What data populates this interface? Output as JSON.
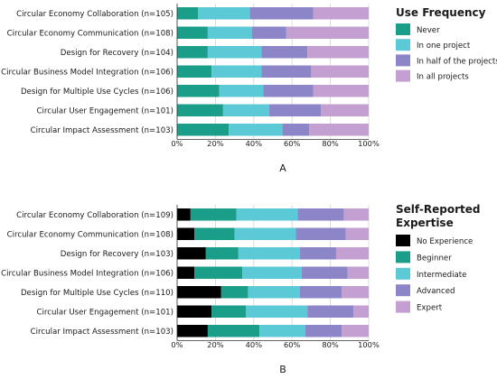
{
  "chart_data": [
    {
      "type": "bar",
      "orientation": "horizontal",
      "stacked": true,
      "panel_label": "A",
      "categories": [
        "Circular Economy Collaboration (n=105)",
        "Circular Economy Communication (n=108)",
        "Design for Recovery (n=104)",
        "Circular Business Model Integration (n=106)",
        "Design for Multiple Use Cycles (n=106)",
        "Circular User Engagement (n=101)",
        "Circular Impact Assessment (n=103)"
      ],
      "xlim": [
        0,
        100
      ],
      "x_ticks": [
        "0%",
        "20%",
        "40%",
        "60%",
        "80%",
        "100%"
      ],
      "legend_title": [
        "Use Frequency"
      ],
      "legend_position": "right",
      "series": [
        {
          "name": "Never",
          "color": "#1a9e8a",
          "values": [
            11,
            16,
            16,
            18,
            22,
            24,
            27
          ]
        },
        {
          "name": "In one project",
          "color": "#5ccad6",
          "values": [
            27,
            23,
            28,
            26,
            23,
            24,
            28
          ]
        },
        {
          "name": "In half of the projects",
          "color": "#8c85c8",
          "values": [
            33,
            18,
            24,
            26,
            26,
            27,
            14
          ]
        },
        {
          "name": "In all projects",
          "color": "#c49fd2",
          "values": [
            29,
            43,
            32,
            30,
            29,
            25,
            31
          ]
        }
      ]
    },
    {
      "type": "bar",
      "orientation": "horizontal",
      "stacked": true,
      "panel_label": "B",
      "categories": [
        "Circular Economy Collaboration (n=109)",
        "Circular Economy Communication (n=108)",
        "Design for Recovery (n=103)",
        "Circular Business Model Integration (n=106)",
        "Design for Multiple Use Cycles (n=110)",
        "Circular User Engagement (n=101)",
        "Circular Impact Assessment (n=103)"
      ],
      "xlim": [
        0,
        100
      ],
      "x_ticks": [
        "0%",
        "20%",
        "40%",
        "60%",
        "80%",
        "100%"
      ],
      "legend_title": [
        "Self-Reported",
        "Expertise"
      ],
      "legend_position": "right",
      "series": [
        {
          "name": "No Experience",
          "color": "#000000",
          "values": [
            7,
            9,
            15,
            9,
            23,
            18,
            16
          ]
        },
        {
          "name": "Beginner",
          "color": "#1a9e8a",
          "values": [
            24,
            21,
            17,
            25,
            14,
            18,
            27
          ]
        },
        {
          "name": "Intermediate",
          "color": "#5ccad6",
          "values": [
            32,
            32,
            32,
            31,
            27,
            32,
            24
          ]
        },
        {
          "name": "Advanced",
          "color": "#8c85c8",
          "values": [
            24,
            26,
            19,
            24,
            22,
            24,
            19
          ]
        },
        {
          "name": "Expert",
          "color": "#c49fd2",
          "values": [
            13,
            12,
            17,
            11,
            14,
            8,
            14
          ]
        }
      ]
    }
  ]
}
